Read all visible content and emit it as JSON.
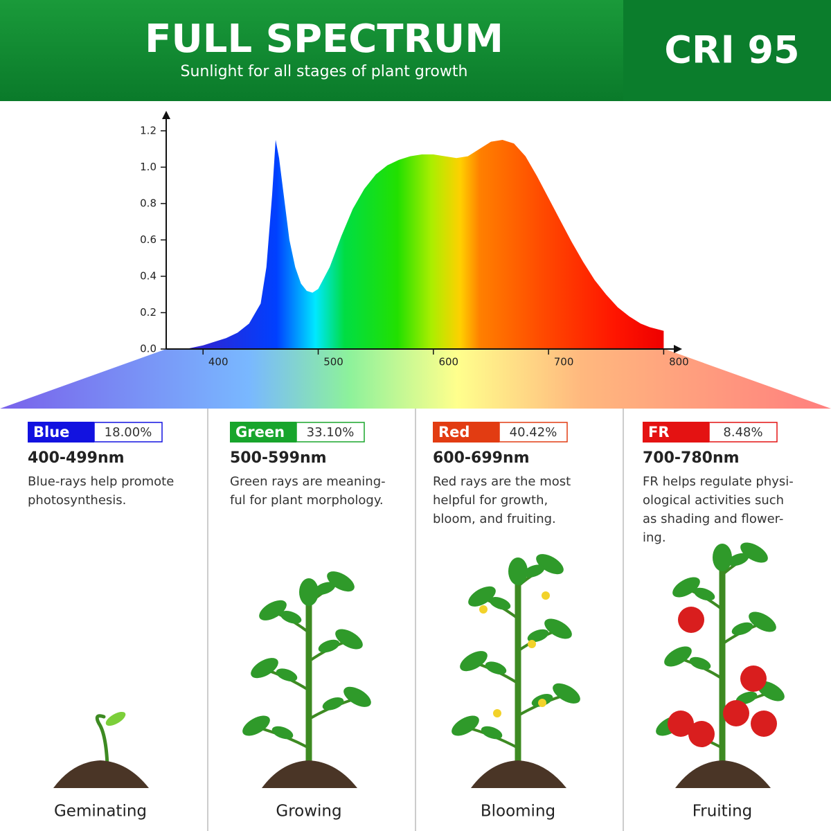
{
  "header": {
    "title": "FULL SPECTRUM",
    "subtitle": "Sunlight for all stages of plant growth",
    "badge": "CRI 95"
  },
  "chart_data": {
    "type": "area",
    "x": [
      385,
      400,
      410,
      420,
      430,
      440,
      450,
      455,
      460,
      463,
      466,
      470,
      475,
      480,
      485,
      490,
      495,
      500,
      510,
      520,
      530,
      540,
      550,
      560,
      570,
      580,
      590,
      600,
      610,
      620,
      630,
      640,
      650,
      660,
      670,
      680,
      690,
      700,
      710,
      720,
      730,
      740,
      750,
      760,
      770,
      780,
      788,
      794,
      800
    ],
    "values": [
      0,
      0.02,
      0.04,
      0.06,
      0.09,
      0.14,
      0.25,
      0.45,
      0.85,
      1.15,
      1.05,
      0.85,
      0.6,
      0.45,
      0.36,
      0.32,
      0.31,
      0.33,
      0.45,
      0.62,
      0.77,
      0.88,
      0.96,
      1.01,
      1.04,
      1.06,
      1.07,
      1.07,
      1.06,
      1.05,
      1.06,
      1.1,
      1.14,
      1.15,
      1.13,
      1.06,
      0.95,
      0.83,
      0.71,
      0.59,
      0.48,
      0.38,
      0.3,
      0.23,
      0.18,
      0.14,
      0.12,
      0.11,
      0.1
    ],
    "xlim": [
      368,
      816
    ],
    "xticks": [
      400,
      500,
      600,
      700,
      800
    ],
    "ylim": [
      0,
      1.31
    ],
    "yticks": [
      {
        "value": 0,
        "label": "0.0"
      },
      0.2,
      0.4,
      0.6,
      0.8,
      {
        "value": 1,
        "label": "1.0"
      },
      1.2
    ]
  },
  "columns": [
    {
      "band": "Blue",
      "percent": "18.00%",
      "range": "400-499nm",
      "description": [
        "Blue-rays help promote",
        "photosynthesis."
      ],
      "stage": "Geminating"
    },
    {
      "band": "Green",
      "percent": "33.10%",
      "range": "500-599nm",
      "description": [
        "Green rays are meaning-",
        "ful for plant morphology."
      ],
      "stage": "Growing"
    },
    {
      "band": "Red",
      "percent": "40.42%",
      "range": "600-699nm",
      "description": [
        "Red rays are the most",
        "helpful for growth,",
        "bloom, and fruiting."
      ],
      "stage": "Blooming"
    },
    {
      "band": "FR",
      "percent": "8.48%",
      "range": "700-780nm",
      "description": [
        "FR helps regulate physi-",
        "ological activities such",
        "as shading and flower-",
        "ing."
      ],
      "stage": "Fruiting"
    }
  ]
}
